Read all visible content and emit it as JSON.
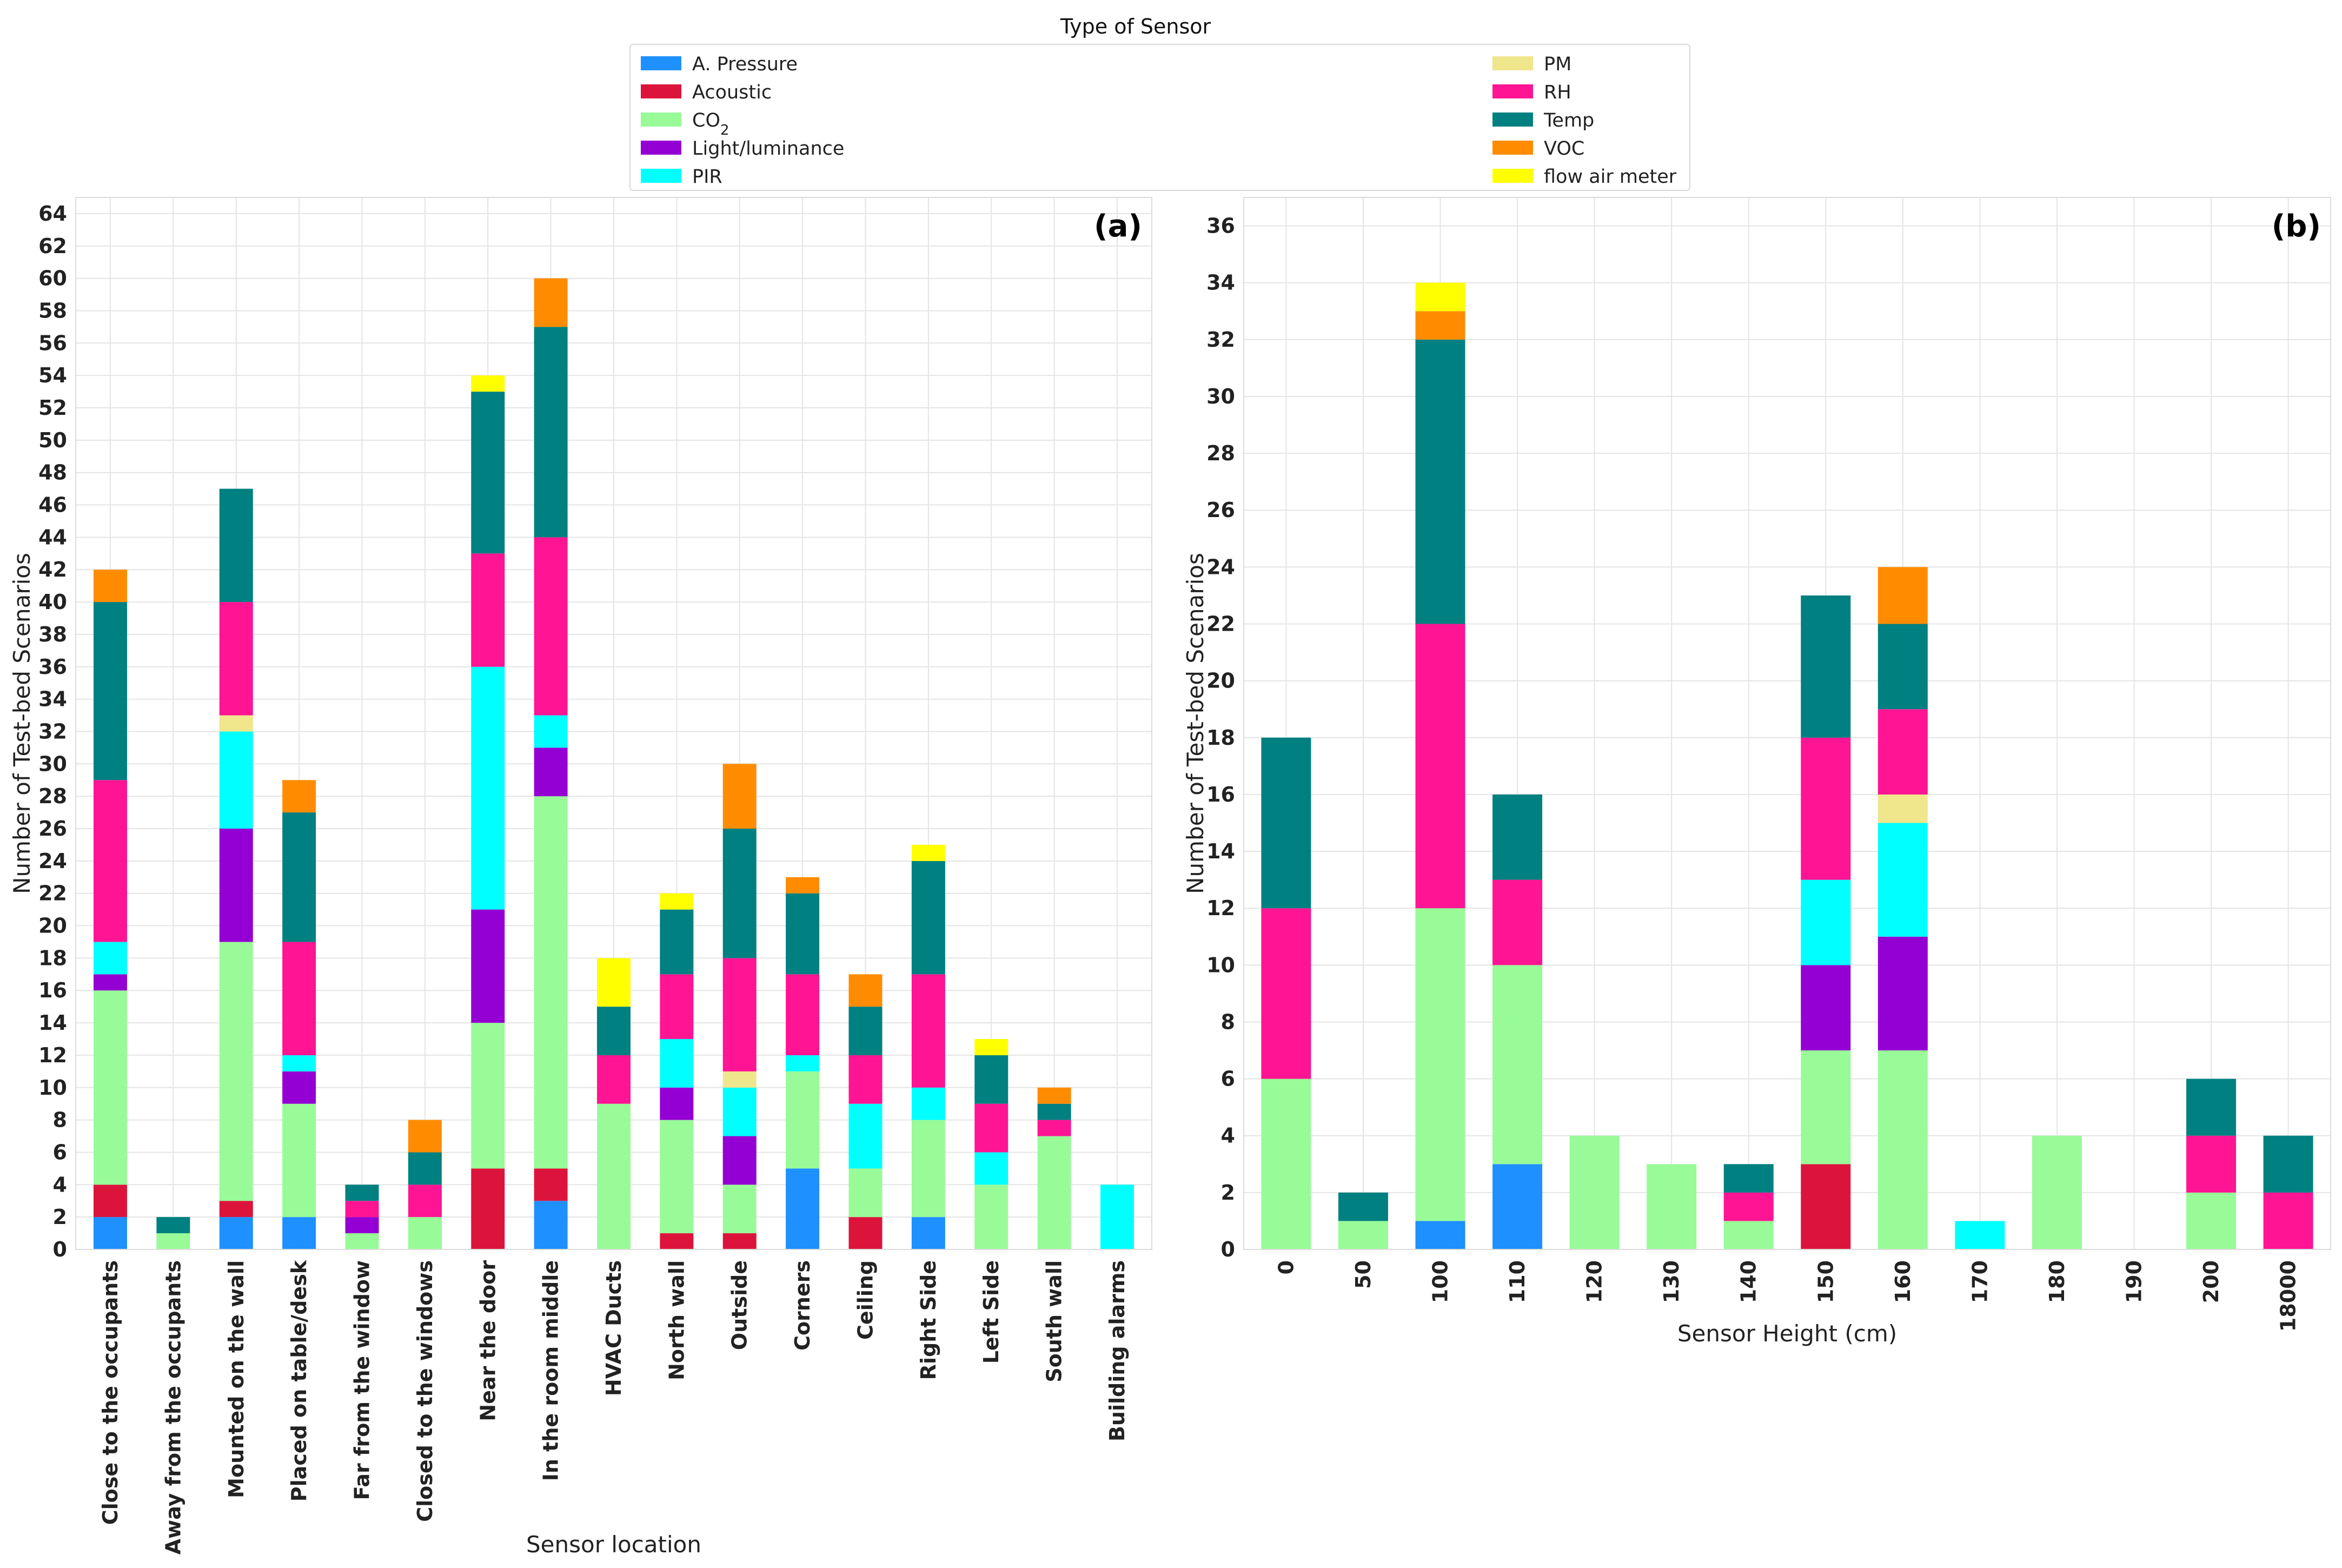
{
  "legend": {
    "title": "Type of Sensor",
    "entries": [
      {
        "key": "pressure",
        "label": "A. Pressure",
        "color": "#1e90ff"
      },
      {
        "key": "acoustic",
        "label": "Acoustic",
        "color": "#dc143c"
      },
      {
        "key": "co2",
        "label": "CO",
        "sub": "2",
        "color": "#98fb98"
      },
      {
        "key": "light",
        "label": "Light/luminance",
        "color": "#9400d3"
      },
      {
        "key": "pir",
        "label": "PIR",
        "color": "#00ffff"
      },
      {
        "key": "pm",
        "label": "PM",
        "color": "#f0e68c"
      },
      {
        "key": "rh",
        "label": "RH",
        "color": "#ff1493"
      },
      {
        "key": "temp",
        "label": "Temp",
        "color": "#008080"
      },
      {
        "key": "voc",
        "label": "VOC",
        "color": "#ff8c00"
      },
      {
        "key": "flow",
        "label": "flow air meter",
        "color": "#ffff00"
      }
    ]
  },
  "chart_data": [
    {
      "type": "bar",
      "stacked": true,
      "panel_label": "(a)",
      "xlabel": "Sensor location",
      "ylabel": "Number of Test-bed Scenarios",
      "ylim": [
        0,
        65
      ],
      "yticks": [
        0,
        2,
        4,
        6,
        8,
        10,
        12,
        14,
        16,
        18,
        20,
        22,
        24,
        26,
        28,
        30,
        32,
        34,
        36,
        38,
        40,
        42,
        44,
        46,
        48,
        50,
        52,
        54,
        56,
        58,
        60,
        62,
        64
      ],
      "categories": [
        "Close to the occupants",
        "Away from the occupants",
        "Mounted on the wall",
        "Placed on table/desk",
        "Far from the window",
        "Closed to the windows",
        "Near the door",
        "In the room middle",
        "HVAC Ducts",
        "North wall",
        "Outside",
        "Corners",
        "Ceiling",
        "Right Side",
        "Left Side",
        "South wall",
        "Building alarms"
      ],
      "series": [
        {
          "name": "A. Pressure",
          "key": "pressure",
          "values": [
            2,
            0,
            2,
            2,
            0,
            0,
            0,
            3,
            0,
            0,
            0,
            5,
            0,
            2,
            0,
            0,
            0
          ]
        },
        {
          "name": "Acoustic",
          "key": "acoustic",
          "values": [
            2,
            0,
            1,
            0,
            0,
            0,
            5,
            2,
            0,
            1,
            1,
            0,
            2,
            0,
            0,
            0,
            0
          ]
        },
        {
          "name": "CO2",
          "key": "co2",
          "values": [
            12,
            1,
            16,
            7,
            1,
            2,
            9,
            23,
            9,
            7,
            3,
            6,
            3,
            6,
            4,
            7,
            0
          ]
        },
        {
          "name": "Light/luminance",
          "key": "light",
          "values": [
            1,
            0,
            7,
            2,
            1,
            0,
            7,
            3,
            0,
            2,
            3,
            0,
            0,
            0,
            0,
            0,
            0
          ]
        },
        {
          "name": "PIR",
          "key": "pir",
          "values": [
            2,
            0,
            6,
            1,
            0,
            0,
            15,
            2,
            0,
            3,
            3,
            1,
            4,
            2,
            2,
            0,
            4
          ]
        },
        {
          "name": "PM",
          "key": "pm",
          "values": [
            0,
            0,
            1,
            0,
            0,
            0,
            0,
            0,
            0,
            0,
            1,
            0,
            0,
            0,
            0,
            0,
            0
          ]
        },
        {
          "name": "RH",
          "key": "rh",
          "values": [
            10,
            0,
            7,
            7,
            1,
            2,
            7,
            11,
            3,
            4,
            7,
            5,
            3,
            7,
            3,
            1,
            0
          ]
        },
        {
          "name": "Temp",
          "key": "temp",
          "values": [
            11,
            1,
            7,
            8,
            1,
            2,
            10,
            13,
            3,
            4,
            8,
            5,
            3,
            7,
            3,
            1,
            0
          ]
        },
        {
          "name": "VOC",
          "key": "voc",
          "values": [
            2,
            0,
            0,
            2,
            0,
            2,
            0,
            3,
            0,
            0,
            4,
            1,
            2,
            0,
            0,
            1,
            0
          ]
        },
        {
          "name": "flow air meter",
          "key": "flow",
          "values": [
            0,
            0,
            0,
            0,
            0,
            0,
            1,
            0,
            3,
            1,
            0,
            0,
            0,
            1,
            1,
            0,
            0
          ]
        }
      ]
    },
    {
      "type": "bar",
      "stacked": true,
      "panel_label": "(b)",
      "xlabel": "Sensor Height (cm)",
      "ylabel": "Number of Test-bed Scenarios",
      "ylim": [
        0,
        37
      ],
      "yticks": [
        0,
        2,
        4,
        6,
        8,
        10,
        12,
        14,
        16,
        18,
        20,
        22,
        24,
        26,
        28,
        30,
        32,
        34,
        36
      ],
      "categories": [
        "0",
        "50",
        "100",
        "110",
        "120",
        "130",
        "140",
        "150",
        "160",
        "170",
        "180",
        "190",
        "200",
        "18000"
      ],
      "series": [
        {
          "name": "A. Pressure",
          "key": "pressure",
          "values": [
            0,
            0,
            1,
            3,
            0,
            0,
            0,
            0,
            0,
            0,
            0,
            0,
            0,
            0
          ]
        },
        {
          "name": "Acoustic",
          "key": "acoustic",
          "values": [
            0,
            0,
            0,
            0,
            0,
            0,
            0,
            3,
            0,
            0,
            0,
            0,
            0,
            0
          ]
        },
        {
          "name": "CO2",
          "key": "co2",
          "values": [
            6,
            1,
            11,
            7,
            4,
            3,
            1,
            4,
            7,
            0,
            4,
            0,
            2,
            0
          ]
        },
        {
          "name": "Light/luminance",
          "key": "light",
          "values": [
            0,
            0,
            0,
            0,
            0,
            0,
            0,
            3,
            4,
            0,
            0,
            0,
            0,
            0
          ]
        },
        {
          "name": "PIR",
          "key": "pir",
          "values": [
            0,
            0,
            0,
            0,
            0,
            0,
            0,
            3,
            4,
            1,
            0,
            0,
            0,
            0
          ]
        },
        {
          "name": "PM",
          "key": "pm",
          "values": [
            0,
            0,
            0,
            0,
            0,
            0,
            0,
            0,
            1,
            0,
            0,
            0,
            0,
            0
          ]
        },
        {
          "name": "RH",
          "key": "rh",
          "values": [
            6,
            0,
            10,
            3,
            0,
            0,
            1,
            5,
            3,
            0,
            0,
            0,
            2,
            2
          ]
        },
        {
          "name": "Temp",
          "key": "temp",
          "values": [
            6,
            1,
            10,
            3,
            0,
            0,
            1,
            5,
            3,
            0,
            0,
            0,
            2,
            2
          ]
        },
        {
          "name": "VOC",
          "key": "voc",
          "values": [
            0,
            0,
            1,
            0,
            0,
            0,
            0,
            0,
            2,
            0,
            0,
            0,
            0,
            0
          ]
        },
        {
          "name": "flow air meter",
          "key": "flow",
          "values": [
            0,
            0,
            1,
            0,
            0,
            0,
            0,
            0,
            0,
            0,
            0,
            0,
            0,
            0
          ]
        }
      ]
    }
  ]
}
